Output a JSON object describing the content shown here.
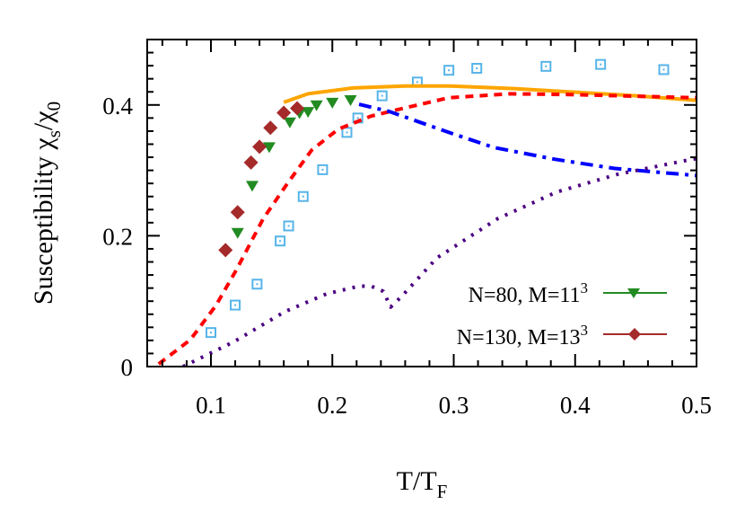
{
  "chart_data": {
    "type": "scatter",
    "xlabel": "T/T",
    "xlabel_sub": "F",
    "ylabel": "Susceptibility χ",
    "ylabel_sub1": "s",
    "ylabel_mid": "/χ",
    "ylabel_sub2": "0",
    "xlim": [
      0.0475,
      0.5
    ],
    "ylim": [
      0,
      0.5
    ],
    "xticks": [
      0.1,
      0.2,
      0.3,
      0.4,
      0.5
    ],
    "xtick_labels": [
      "0.1",
      "0.2",
      "0.3",
      "0.4",
      "0.5"
    ],
    "yticks": [
      0,
      0.2,
      0.4
    ],
    "ytick_labels": [
      "0",
      "0.2",
      "0.4"
    ],
    "grid": false,
    "legend_placement": "bottom-right",
    "series": [
      {
        "name": "N=80, M=11",
        "name_sup": "3",
        "style": "markers",
        "marker": "triangle-down",
        "color": "#228b22",
        "x": [
          0.122,
          0.134,
          0.148,
          0.165,
          0.173,
          0.18,
          0.187,
          0.2,
          0.215
        ],
        "y": [
          0.205,
          0.277,
          0.336,
          0.374,
          0.388,
          0.39,
          0.4,
          0.404,
          0.408
        ]
      },
      {
        "name": "N=130, M=13",
        "name_sup": "3",
        "style": "markers",
        "marker": "diamond",
        "color": "#a52a2a",
        "x": [
          0.112,
          0.122,
          0.133,
          0.14,
          0.149,
          0.16,
          0.171
        ],
        "y": [
          0.178,
          0.236,
          0.312,
          0.336,
          0.365,
          0.388,
          0.395
        ]
      },
      {
        "style": "markers",
        "marker": "open-square",
        "color": "#56b4e9",
        "x": [
          0.1,
          0.12,
          0.138,
          0.157,
          0.164,
          0.176,
          0.192,
          0.212,
          0.221,
          0.241,
          0.27,
          0.296,
          0.319,
          0.376,
          0.421,
          0.473
        ],
        "y": [
          0.052,
          0.094,
          0.126,
          0.192,
          0.215,
          0.26,
          0.301,
          0.358,
          0.38,
          0.414,
          0.435,
          0.453,
          0.456,
          0.459,
          0.462,
          0.454
        ]
      },
      {
        "style": "solid",
        "color": "#ffa500",
        "x": [
          0.16,
          0.18,
          0.217,
          0.26,
          0.296,
          0.35,
          0.395,
          0.45,
          0.5
        ],
        "y": [
          0.404,
          0.417,
          0.426,
          0.429,
          0.429,
          0.425,
          0.42,
          0.414,
          0.407
        ]
      },
      {
        "style": "dashed",
        "color": "#ff0000",
        "x": [
          0.057,
          0.083,
          0.104,
          0.121,
          0.143,
          0.163,
          0.183,
          0.205,
          0.232,
          0.252,
          0.296,
          0.346,
          0.395,
          0.5
        ],
        "y": [
          0.004,
          0.041,
          0.093,
          0.148,
          0.226,
          0.28,
          0.331,
          0.363,
          0.383,
          0.392,
          0.411,
          0.417,
          0.416,
          0.411
        ]
      },
      {
        "style": "dash-dot",
        "color": "#0000ff",
        "x": [
          0.222,
          0.247,
          0.296,
          0.333,
          0.383,
          0.432,
          0.5
        ],
        "y": [
          0.401,
          0.39,
          0.358,
          0.335,
          0.317,
          0.303,
          0.292
        ]
      },
      {
        "style": "dotted",
        "color": "#4b0082",
        "x": [
          0.077,
          0.119,
          0.161,
          0.195,
          0.222,
          0.232,
          0.242,
          0.248,
          0.257,
          0.286,
          0.336,
          0.385,
          0.435,
          0.491,
          0.5
        ],
        "y": [
          0.0,
          0.038,
          0.084,
          0.111,
          0.123,
          0.123,
          0.115,
          0.091,
          0.107,
          0.166,
          0.226,
          0.267,
          0.294,
          0.315,
          0.318
        ]
      }
    ]
  }
}
